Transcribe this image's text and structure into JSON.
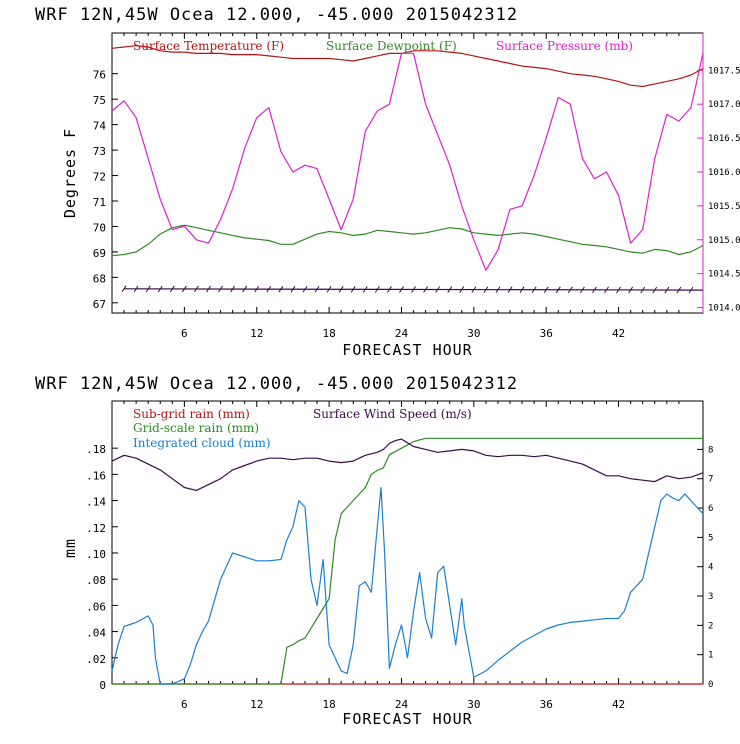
{
  "chart_data": [
    {
      "type": "line",
      "title": "WRF   12N,45W Ocea   12.000, -45.000  2015042312",
      "xlabel": "FORECAST HOUR",
      "ylabel": "Degrees F",
      "xlim": [
        0,
        49
      ],
      "x_ticks": [
        6,
        12,
        18,
        24,
        30,
        36,
        42
      ],
      "ylim": [
        66.6,
        77.6
      ],
      "y_ticks": [
        67,
        68,
        69,
        70,
        71,
        72,
        73,
        74,
        75,
        76
      ],
      "y2lim": [
        1013.92,
        1018.05
      ],
      "y2_ticks": [
        1014.0,
        1014.5,
        1015.0,
        1015.5,
        1016.0,
        1016.5,
        1017.0,
        1017.5
      ],
      "y2_tick_labels": [
        "1014.0",
        "1014.5",
        "1015.0",
        "1015.5",
        "1016.0",
        "1016.5",
        "1017.0",
        "1017.5"
      ],
      "series": [
        {
          "name": "Surface Temperature (F)",
          "color": "#b81414",
          "axis": "left",
          "x": [
            0,
            1,
            2,
            3,
            4,
            5,
            6,
            7,
            8,
            9,
            10,
            11,
            12,
            13,
            14,
            15,
            16,
            17,
            18,
            19,
            20,
            21,
            22,
            23,
            24,
            25,
            26,
            27,
            28,
            29,
            30,
            31,
            32,
            33,
            34,
            35,
            36,
            37,
            38,
            39,
            40,
            41,
            42,
            43,
            44,
            45,
            46,
            47,
            48,
            49
          ],
          "y": [
            77.0,
            77.05,
            77.1,
            77.05,
            76.9,
            76.85,
            76.85,
            76.8,
            76.8,
            76.8,
            76.75,
            76.75,
            76.75,
            76.7,
            76.65,
            76.6,
            76.6,
            76.6,
            76.6,
            76.55,
            76.5,
            76.6,
            76.7,
            76.8,
            76.8,
            76.9,
            76.9,
            76.9,
            76.85,
            76.8,
            76.7,
            76.6,
            76.5,
            76.4,
            76.3,
            76.25,
            76.2,
            76.1,
            76.0,
            75.95,
            75.9,
            75.8,
            75.7,
            75.55,
            75.5,
            75.6,
            75.7,
            75.8,
            75.95,
            76.2
          ]
        },
        {
          "name": "Surface Dewpoint (F)",
          "color": "#2e8b22",
          "axis": "left",
          "x": [
            0,
            1,
            2,
            3,
            4,
            5,
            6,
            7,
            8,
            9,
            10,
            11,
            12,
            13,
            14,
            15,
            16,
            17,
            18,
            19,
            20,
            21,
            22,
            23,
            24,
            25,
            26,
            27,
            28,
            29,
            30,
            31,
            32,
            33,
            34,
            35,
            36,
            37,
            38,
            39,
            40,
            41,
            42,
            43,
            44,
            45,
            46,
            47,
            48,
            49
          ],
          "y": [
            68.85,
            68.9,
            69.0,
            69.3,
            69.7,
            69.95,
            70.05,
            69.95,
            69.85,
            69.75,
            69.65,
            69.55,
            69.5,
            69.45,
            69.3,
            69.3,
            69.5,
            69.7,
            69.8,
            69.75,
            69.65,
            69.7,
            69.85,
            69.8,
            69.75,
            69.7,
            69.75,
            69.85,
            69.95,
            69.9,
            69.75,
            69.7,
            69.65,
            69.7,
            69.75,
            69.7,
            69.6,
            69.5,
            69.4,
            69.3,
            69.25,
            69.2,
            69.1,
            69.0,
            68.95,
            69.1,
            69.05,
            68.9,
            69.0,
            69.25
          ]
        },
        {
          "name": "Surface Pressure (mb)",
          "color": "#e020d0",
          "axis": "right",
          "x": [
            0,
            1,
            2,
            3,
            4,
            5,
            6,
            7,
            8,
            9,
            10,
            11,
            12,
            13,
            14,
            15,
            16,
            17,
            18,
            19,
            20,
            21,
            22,
            23,
            24,
            25,
            26,
            27,
            28,
            29,
            30,
            31,
            32,
            33,
            34,
            35,
            36,
            37,
            38,
            39,
            40,
            41,
            42,
            43,
            44,
            45,
            46,
            47,
            48,
            49
          ],
          "y": [
            1016.9,
            1017.05,
            1016.8,
            1016.2,
            1015.6,
            1015.15,
            1015.2,
            1015.0,
            1014.95,
            1015.3,
            1015.75,
            1016.35,
            1016.8,
            1016.95,
            1016.3,
            1016.0,
            1016.1,
            1016.05,
            1015.6,
            1015.15,
            1015.6,
            1016.6,
            1016.9,
            1017.0,
            1017.75,
            1017.75,
            1017.0,
            1016.55,
            1016.1,
            1015.5,
            1015.0,
            1014.55,
            1014.85,
            1015.45,
            1015.5,
            1015.95,
            1016.5,
            1017.1,
            1017.0,
            1016.2,
            1015.9,
            1016.0,
            1015.65,
            1014.95,
            1015.15,
            1016.2,
            1016.85,
            1016.75,
            1016.95,
            1017.75
          ]
        },
        {
          "name": "Surface Wind barbs",
          "color": "#3a0a4a",
          "axis": "left",
          "x": [
            1,
            49
          ],
          "y": [
            67.55,
            67.5
          ]
        }
      ]
    },
    {
      "type": "line",
      "title": "WRF   12N,45W Ocea   12.000, -45.000  2015042312",
      "xlabel": "FORECAST HOUR",
      "ylabel": "mm",
      "xlim": [
        0,
        49
      ],
      "x_ticks": [
        6,
        12,
        18,
        24,
        30,
        36,
        42
      ],
      "ylim": [
        0,
        0.216
      ],
      "y_ticks": [
        0,
        0.02,
        0.04,
        0.06,
        0.08,
        0.1,
        0.12,
        0.14,
        0.16,
        0.18
      ],
      "y_tick_labels": [
        "0",
        ".02",
        ".04",
        ".06",
        ".08",
        ".10",
        ".12",
        ".14",
        ".16",
        ".18"
      ],
      "y2lim": [
        0,
        9.65
      ],
      "y2_ticks": [
        0,
        1,
        2,
        3,
        4,
        5,
        6,
        7,
        8
      ],
      "y2_tick_labels": [
        "0",
        "1",
        "2",
        "3",
        "4",
        "5",
        "6",
        "7",
        "8"
      ],
      "series": [
        {
          "name": "Sub-grid rain (mm)",
          "color": "#b81414",
          "axis": "left",
          "x": [
            0,
            49
          ],
          "y": [
            0,
            0
          ]
        },
        {
          "name": "Grid-scale rain (mm)",
          "color": "#2e8b22",
          "axis": "left",
          "x": [
            0,
            14,
            14.5,
            15,
            15.5,
            16,
            17,
            18,
            18.5,
            19,
            19.5,
            20,
            21,
            21.5,
            22,
            22.5,
            23,
            24,
            25,
            26,
            30,
            35,
            40,
            45,
            49
          ],
          "y": [
            0,
            0,
            0.028,
            0.03,
            0.033,
            0.035,
            0.05,
            0.065,
            0.11,
            0.13,
            0.135,
            0.14,
            0.15,
            0.16,
            0.163,
            0.165,
            0.175,
            0.18,
            0.185,
            0.1875,
            0.1875,
            0.1875,
            0.1875,
            0.1875,
            0.1875
          ]
        },
        {
          "name": "Integrated cloud (mm)",
          "color": "#1a7fd0",
          "axis": "left",
          "x": [
            0,
            0.5,
            1,
            2,
            3,
            3.4,
            3.6,
            4,
            5,
            6,
            6.5,
            7,
            7.5,
            8,
            9,
            10,
            11,
            12,
            13,
            14,
            14.5,
            15,
            15.5,
            16,
            16.5,
            17,
            17.5,
            18,
            18.5,
            19,
            19.5,
            20,
            20.5,
            21,
            21.5,
            22,
            22.3,
            22.6,
            23,
            23.5,
            24,
            24.5,
            25,
            25.5,
            26,
            26.5,
            27,
            27.5,
            28,
            28.5,
            29,
            29.2,
            30,
            31,
            32,
            33,
            34,
            35,
            36,
            37,
            38,
            39,
            40,
            41,
            42,
            42.5,
            43,
            43.5,
            44,
            44.5,
            45,
            45.5,
            46,
            46.5,
            47,
            47.5,
            48,
            49
          ],
          "y": [
            0.01,
            0.03,
            0.044,
            0.047,
            0.052,
            0.045,
            0.02,
            0.0,
            0.0,
            0.004,
            0.015,
            0.03,
            0.04,
            0.048,
            0.08,
            0.1,
            0.097,
            0.094,
            0.094,
            0.095,
            0.11,
            0.12,
            0.14,
            0.135,
            0.08,
            0.06,
            0.095,
            0.03,
            0.02,
            0.01,
            0.008,
            0.03,
            0.075,
            0.078,
            0.07,
            0.12,
            0.15,
            0.1,
            0.012,
            0.03,
            0.045,
            0.02,
            0.055,
            0.085,
            0.05,
            0.035,
            0.085,
            0.09,
            0.06,
            0.03,
            0.065,
            0.045,
            0.005,
            0.01,
            0.018,
            0.025,
            0.032,
            0.037,
            0.042,
            0.045,
            0.047,
            0.048,
            0.049,
            0.05,
            0.05,
            0.056,
            0.07,
            0.075,
            0.08,
            0.1,
            0.12,
            0.14,
            0.145,
            0.142,
            0.14,
            0.145,
            0.14,
            0.13
          ]
        },
        {
          "name": "Surface Wind Speed (m/s)",
          "color": "#3a0a4a",
          "axis": "right",
          "x": [
            0,
            1,
            2,
            3,
            4,
            5,
            6,
            7,
            8,
            9,
            10,
            11,
            12,
            13,
            14,
            15,
            16,
            17,
            18,
            19,
            20,
            21,
            22,
            22.5,
            23,
            23.5,
            24,
            25,
            26,
            27,
            28,
            29,
            30,
            31,
            32,
            33,
            34,
            35,
            36,
            37,
            38,
            39,
            40,
            41,
            42,
            43,
            44,
            45,
            46,
            47,
            48,
            49
          ],
          "y": [
            7.6,
            7.8,
            7.7,
            7.5,
            7.3,
            7.0,
            6.7,
            6.6,
            6.8,
            7.0,
            7.3,
            7.45,
            7.6,
            7.7,
            7.7,
            7.65,
            7.7,
            7.7,
            7.6,
            7.55,
            7.6,
            7.8,
            7.9,
            8.0,
            8.2,
            8.3,
            8.35,
            8.1,
            8.0,
            7.9,
            7.95,
            8.0,
            7.95,
            7.8,
            7.75,
            7.8,
            7.8,
            7.75,
            7.8,
            7.7,
            7.6,
            7.5,
            7.3,
            7.1,
            7.1,
            7.0,
            6.95,
            6.9,
            7.1,
            7.0,
            7.05,
            7.2
          ]
        }
      ]
    }
  ]
}
